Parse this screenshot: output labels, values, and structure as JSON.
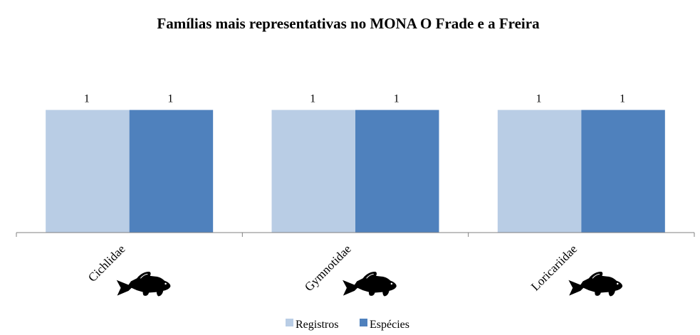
{
  "chart_data": {
    "type": "bar",
    "title": "Famílias mais representativas no MONA O Frade e a Freira",
    "categories": [
      "Cichlidae",
      "Gymnotidae",
      "Loricariidae"
    ],
    "series": [
      {
        "name": "Registros",
        "values": [
          1,
          1,
          1
        ],
        "color": "#b9cde5"
      },
      {
        "name": "Espécies",
        "values": [
          1,
          1,
          1
        ],
        "color": "#4f81bd"
      }
    ],
    "ylim": [
      0,
      1.16
    ],
    "data_labels": true,
    "grid": false,
    "legend": "bottom",
    "category_icon": "fish-silhouette-icon"
  }
}
